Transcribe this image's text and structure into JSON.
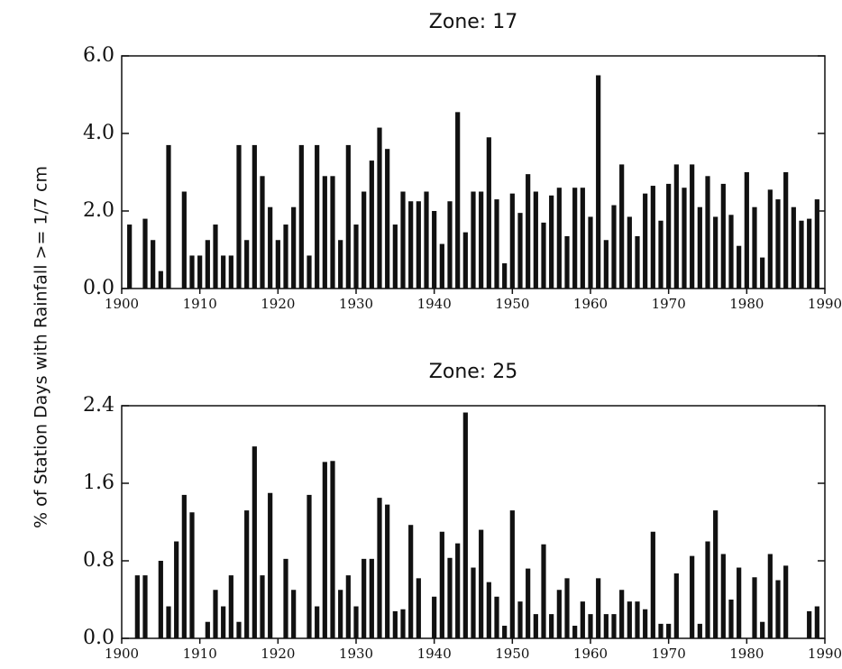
{
  "chart_data": [
    {
      "type": "bar",
      "title": "Zone:  17",
      "ylabel": "% of Station Days with Rainfall >= 1/7 cm",
      "color": "#111111",
      "x": [
        1901,
        1902,
        1903,
        1904,
        1905,
        1906,
        1907,
        1908,
        1909,
        1910,
        1911,
        1912,
        1913,
        1914,
        1915,
        1916,
        1917,
        1918,
        1919,
        1920,
        1921,
        1922,
        1923,
        1924,
        1925,
        1926,
        1927,
        1928,
        1929,
        1930,
        1931,
        1932,
        1933,
        1934,
        1935,
        1936,
        1937,
        1938,
        1939,
        1940,
        1941,
        1942,
        1943,
        1944,
        1945,
        1946,
        1947,
        1948,
        1949,
        1950,
        1951,
        1952,
        1953,
        1954,
        1955,
        1956,
        1957,
        1958,
        1959,
        1960,
        1961,
        1962,
        1963,
        1964,
        1965,
        1966,
        1967,
        1968,
        1969,
        1970,
        1971,
        1972,
        1973,
        1974,
        1975,
        1976,
        1977,
        1978,
        1979,
        1980,
        1981,
        1982,
        1983,
        1984,
        1985,
        1986,
        1987,
        1988,
        1989
      ],
      "values": [
        1.65,
        null,
        1.8,
        1.25,
        0.45,
        3.7,
        null,
        2.5,
        0.85,
        0.85,
        1.25,
        1.65,
        0.85,
        0.85,
        3.7,
        1.25,
        3.7,
        2.9,
        2.1,
        1.25,
        1.65,
        2.1,
        3.7,
        0.85,
        3.7,
        2.9,
        2.9,
        1.25,
        3.7,
        1.65,
        2.5,
        3.3,
        4.15,
        3.6,
        1.65,
        2.5,
        2.25,
        2.25,
        2.5,
        2.0,
        1.15,
        2.25,
        4.55,
        1.45,
        2.5,
        2.5,
        3.9,
        2.3,
        0.65,
        2.45,
        1.95,
        2.95,
        2.5,
        1.7,
        2.4,
        2.6,
        1.35,
        2.6,
        2.6,
        1.85,
        5.5,
        1.25,
        2.15,
        3.2,
        1.85,
        1.35,
        2.45,
        2.65,
        1.75,
        2.7,
        3.2,
        2.6,
        3.2,
        2.1,
        2.9,
        1.85,
        2.7,
        1.9,
        1.1,
        3.0,
        2.1,
        0.8,
        2.55,
        2.3,
        3.0,
        2.1,
        1.75,
        1.8,
        2.3
      ],
      "xlim": [
        1900,
        1990
      ],
      "xticks": [
        1900,
        1910,
        1920,
        1930,
        1940,
        1950,
        1960,
        1970,
        1980,
        1990
      ],
      "ylim": [
        0,
        6
      ],
      "yticks": [
        {
          "value": 0,
          "label": "0.0"
        },
        {
          "value": 2,
          "label": "2.0"
        },
        {
          "value": 4,
          "label": "4.0"
        },
        {
          "value": 6,
          "label": "6.0"
        }
      ]
    },
    {
      "type": "bar",
      "title": "Zone:  25",
      "color": "#111111",
      "x": [
        1901,
        1902,
        1903,
        1904,
        1905,
        1906,
        1907,
        1908,
        1909,
        1910,
        1911,
        1912,
        1913,
        1914,
        1915,
        1916,
        1917,
        1918,
        1919,
        1920,
        1921,
        1922,
        1923,
        1924,
        1925,
        1926,
        1927,
        1928,
        1929,
        1930,
        1931,
        1932,
        1933,
        1934,
        1935,
        1936,
        1937,
        1938,
        1939,
        1940,
        1941,
        1942,
        1943,
        1944,
        1945,
        1946,
        1947,
        1948,
        1949,
        1950,
        1951,
        1952,
        1953,
        1954,
        1955,
        1956,
        1957,
        1958,
        1959,
        1960,
        1961,
        1962,
        1963,
        1964,
        1965,
        1966,
        1967,
        1968,
        1969,
        1970,
        1971,
        1972,
        1973,
        1974,
        1975,
        1976,
        1977,
        1978,
        1979,
        1980,
        1981,
        1982,
        1983,
        1984,
        1985,
        1986,
        1987,
        1988,
        1989
      ],
      "values": [
        null,
        0.65,
        0.65,
        null,
        0.8,
        0.33,
        1.0,
        1.48,
        1.3,
        null,
        0.17,
        0.5,
        0.33,
        0.65,
        0.17,
        1.32,
        1.98,
        0.65,
        1.5,
        null,
        0.82,
        0.5,
        null,
        1.48,
        0.33,
        1.82,
        1.83,
        0.5,
        0.65,
        0.33,
        0.82,
        0.82,
        1.45,
        1.38,
        0.28,
        0.3,
        1.17,
        0.62,
        null,
        0.43,
        1.1,
        0.83,
        0.98,
        2.33,
        0.73,
        1.12,
        0.58,
        0.43,
        0.13,
        1.32,
        0.38,
        0.72,
        0.25,
        0.97,
        0.25,
        0.5,
        0.62,
        0.13,
        0.38,
        0.25,
        0.62,
        0.25,
        0.25,
        0.5,
        0.38,
        0.38,
        0.3,
        1.1,
        0.15,
        0.15,
        0.67,
        null,
        0.85,
        0.15,
        1.0,
        1.32,
        0.87,
        0.4,
        0.73,
        null,
        0.63,
        0.17,
        0.87,
        0.6,
        0.75,
        null,
        null,
        0.28,
        0.33
      ],
      "xlim": [
        1900,
        1990
      ],
      "xticks": [
        1900,
        1910,
        1920,
        1930,
        1940,
        1950,
        1960,
        1970,
        1980,
        1990
      ],
      "ylim": [
        0,
        2.4
      ],
      "yticks": [
        {
          "value": 0,
          "label": "0.0"
        },
        {
          "value": 0.8,
          "label": "0.8"
        },
        {
          "value": 1.6,
          "label": "1.6"
        },
        {
          "value": 2.4,
          "label": "2.4"
        }
      ]
    }
  ]
}
